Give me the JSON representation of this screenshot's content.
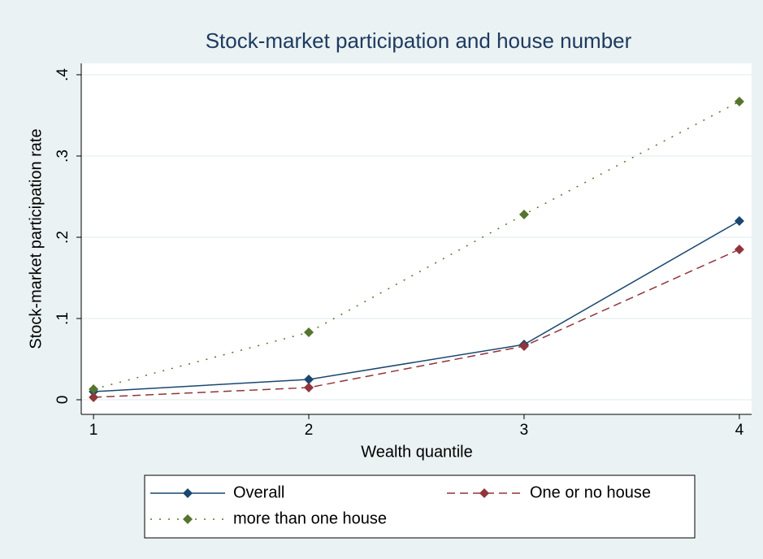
{
  "chart_data": {
    "type": "line",
    "title": "Stock-market participation and house number",
    "x_label": "Wealth quantile",
    "y_label": "Stock-market participation rate",
    "x": [
      1,
      2,
      3,
      4
    ],
    "xlim": [
      0.943,
      4.057
    ],
    "xticks": [
      1,
      2,
      3,
      4
    ],
    "ylim": [
      -0.018,
      0.414
    ],
    "yticks": [
      0,
      {
        "value": 0.1,
        "label": ".1"
      },
      {
        "value": 0.2,
        "label": ".2"
      },
      {
        "value": 0.3,
        "label": ".3"
      },
      {
        "value": 0.4,
        "label": ".4"
      }
    ],
    "grid": true,
    "series": [
      {
        "name": "Overall",
        "color": "#1a476f",
        "style": "solid",
        "values": [
          0.01,
          0.025,
          0.068,
          0.22
        ]
      },
      {
        "name": "One or no house",
        "color": "#90353b",
        "style": "dash",
        "values": [
          0.003,
          0.015,
          0.066,
          0.185
        ]
      },
      {
        "name": "more than one house",
        "color": "#55752f",
        "style": "dot",
        "values": [
          0.013,
          0.083,
          0.228,
          0.367
        ]
      }
    ]
  }
}
